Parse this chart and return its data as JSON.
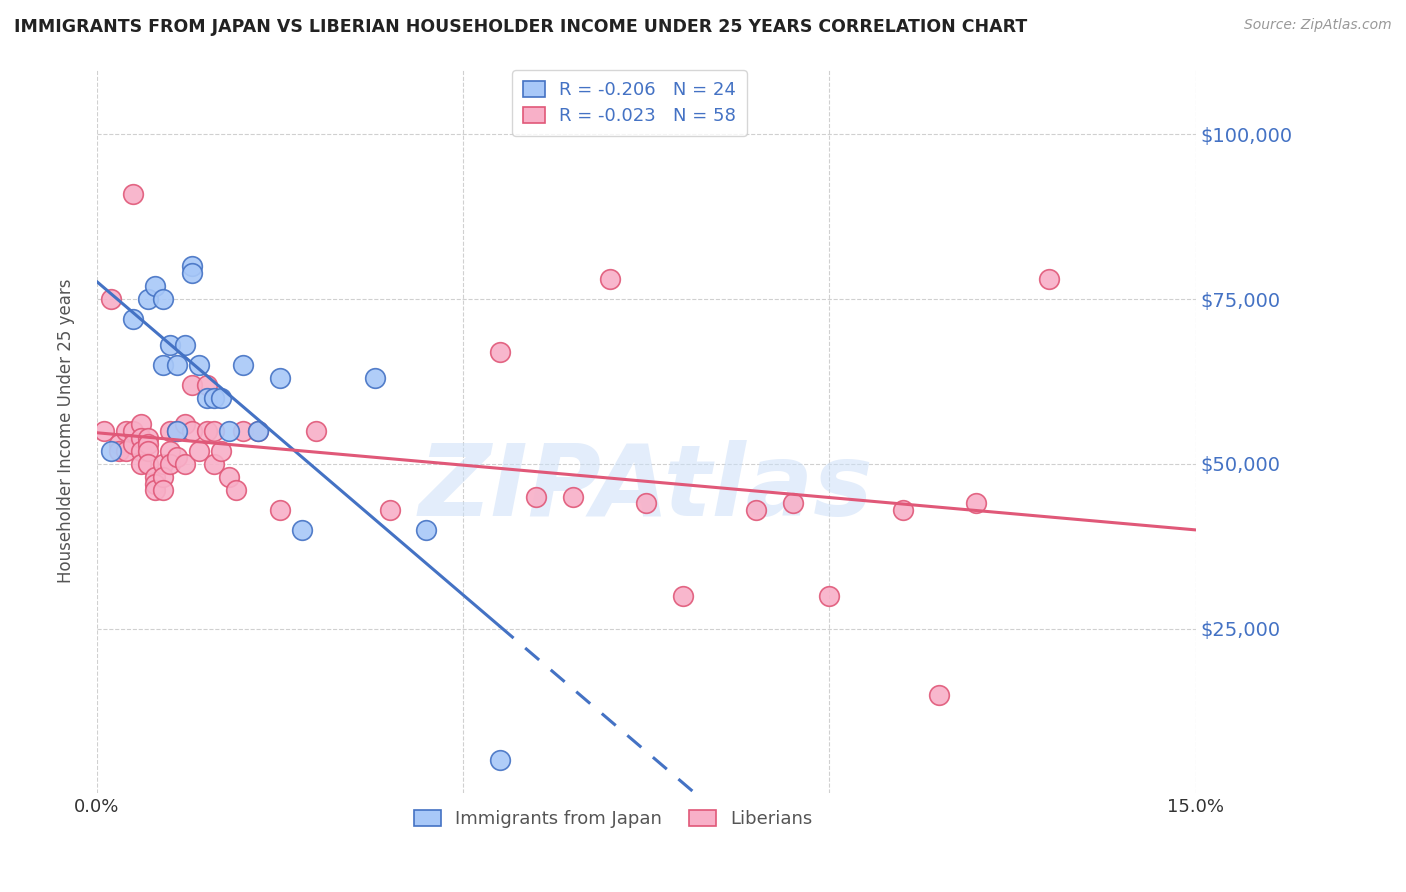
{
  "title": "IMMIGRANTS FROM JAPAN VS LIBERIAN HOUSEHOLDER INCOME UNDER 25 YEARS CORRELATION CHART",
  "source": "Source: ZipAtlas.com",
  "ylabel": "Householder Income Under 25 years",
  "ytick_labels": [
    "$25,000",
    "$50,000",
    "$75,000",
    "$100,000"
  ],
  "ytick_values": [
    25000,
    50000,
    75000,
    100000
  ],
  "ylim": [
    0,
    110000
  ],
  "xlim": [
    0.0,
    0.15
  ],
  "legend_japan": "Immigrants from Japan",
  "legend_liberia": "Liberians",
  "r_japan": "-0.206",
  "n_japan": "24",
  "r_liberia": "-0.023",
  "n_liberia": "58",
  "japan_color": "#a8c8f8",
  "liberia_color": "#f8b0c8",
  "trend_japan_color": "#4472c4",
  "trend_liberia_color": "#e05878",
  "watermark": "ZIPAtlas",
  "japan_x": [
    0.002,
    0.005,
    0.007,
    0.008,
    0.009,
    0.009,
    0.01,
    0.011,
    0.011,
    0.012,
    0.013,
    0.013,
    0.014,
    0.015,
    0.016,
    0.017,
    0.018,
    0.02,
    0.022,
    0.025,
    0.028,
    0.038,
    0.045,
    0.055
  ],
  "japan_y": [
    52000,
    72000,
    75000,
    77000,
    75000,
    65000,
    68000,
    65000,
    55000,
    68000,
    80000,
    79000,
    65000,
    60000,
    60000,
    60000,
    55000,
    65000,
    55000,
    63000,
    40000,
    63000,
    40000,
    5000
  ],
  "liberia_x": [
    0.001,
    0.002,
    0.003,
    0.003,
    0.004,
    0.004,
    0.005,
    0.005,
    0.005,
    0.006,
    0.006,
    0.006,
    0.006,
    0.007,
    0.007,
    0.007,
    0.007,
    0.008,
    0.008,
    0.008,
    0.009,
    0.009,
    0.009,
    0.01,
    0.01,
    0.01,
    0.011,
    0.011,
    0.012,
    0.012,
    0.013,
    0.013,
    0.014,
    0.015,
    0.015,
    0.016,
    0.016,
    0.017,
    0.018,
    0.019,
    0.02,
    0.022,
    0.025,
    0.03,
    0.04,
    0.055,
    0.06,
    0.065,
    0.07,
    0.075,
    0.08,
    0.09,
    0.095,
    0.1,
    0.11,
    0.115,
    0.12,
    0.13
  ],
  "liberia_y": [
    55000,
    75000,
    53000,
    52000,
    55000,
    52000,
    91000,
    55000,
    53000,
    56000,
    54000,
    52000,
    50000,
    54000,
    53000,
    52000,
    50000,
    48000,
    47000,
    46000,
    50000,
    48000,
    46000,
    55000,
    52000,
    50000,
    55000,
    51000,
    56000,
    50000,
    62000,
    55000,
    52000,
    62000,
    55000,
    55000,
    50000,
    52000,
    48000,
    46000,
    55000,
    55000,
    43000,
    55000,
    43000,
    67000,
    45000,
    45000,
    78000,
    44000,
    30000,
    43000,
    44000,
    30000,
    43000,
    15000,
    44000,
    78000
  ]
}
